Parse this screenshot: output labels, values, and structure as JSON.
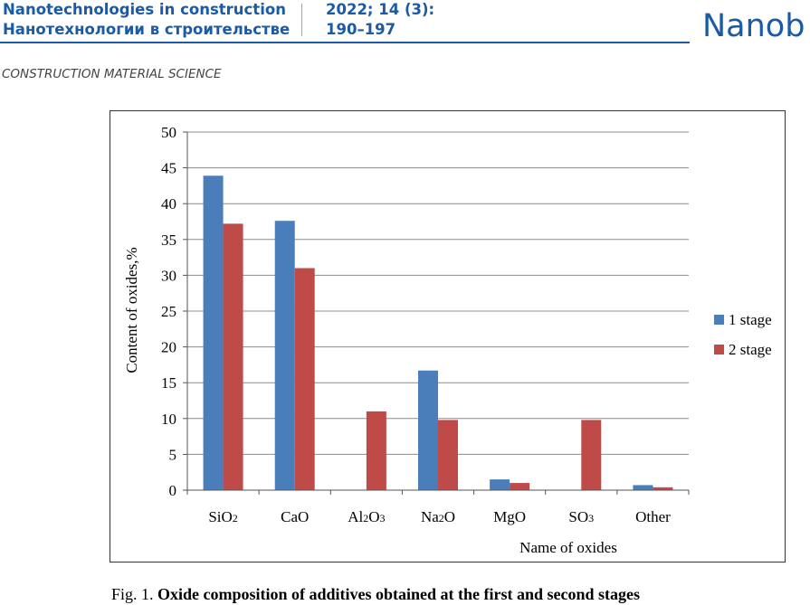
{
  "header": {
    "journal_en": "Nanotechnologies in construction",
    "journal_ru": "Нанотехнологии в строительстве",
    "issue": "2022; 14 (3):",
    "pages": "190–197",
    "brand": "Nanob",
    "section": "CONSTRUCTION MATERIAL SCIENCE"
  },
  "colors": {
    "brand_blue": "#1b5aa6",
    "series1": "#4a7ebb",
    "series2": "#be4b48",
    "grid": "#8c8c8c"
  },
  "caption": {
    "prefix": "Fig. 1.",
    "text": "Oxide composition of additives obtained at the first and second stages"
  },
  "chart_data": {
    "type": "bar",
    "title": "",
    "xlabel": "Name of oxides",
    "ylabel": "Content of oxides,%",
    "ylim": [
      0,
      50
    ],
    "yticks": [
      0,
      5,
      10,
      15,
      20,
      25,
      30,
      35,
      40,
      45,
      50
    ],
    "grid": true,
    "legend_position": "right",
    "categories": [
      {
        "base": "SiO",
        "sub": "2",
        "tail": ""
      },
      {
        "base": "CaO",
        "sub": "",
        "tail": ""
      },
      {
        "base": "Al",
        "sub": "2",
        "tail": "O",
        "sub2": "3"
      },
      {
        "base": "Na",
        "sub": "2",
        "tail": "O"
      },
      {
        "base": "MgO",
        "sub": "",
        "tail": ""
      },
      {
        "base": "SO",
        "sub": "3",
        "tail": ""
      },
      {
        "base": "Other",
        "sub": "",
        "tail": ""
      }
    ],
    "series": [
      {
        "name": "1   stage",
        "color": "#4a7ebb",
        "values": [
          43.9,
          37.6,
          0,
          16.7,
          1.5,
          0,
          0.7
        ]
      },
      {
        "name": "2   stage",
        "color": "#be4b48",
        "values": [
          37.2,
          31.0,
          11.0,
          9.8,
          1.0,
          9.8,
          0.4
        ]
      }
    ]
  }
}
